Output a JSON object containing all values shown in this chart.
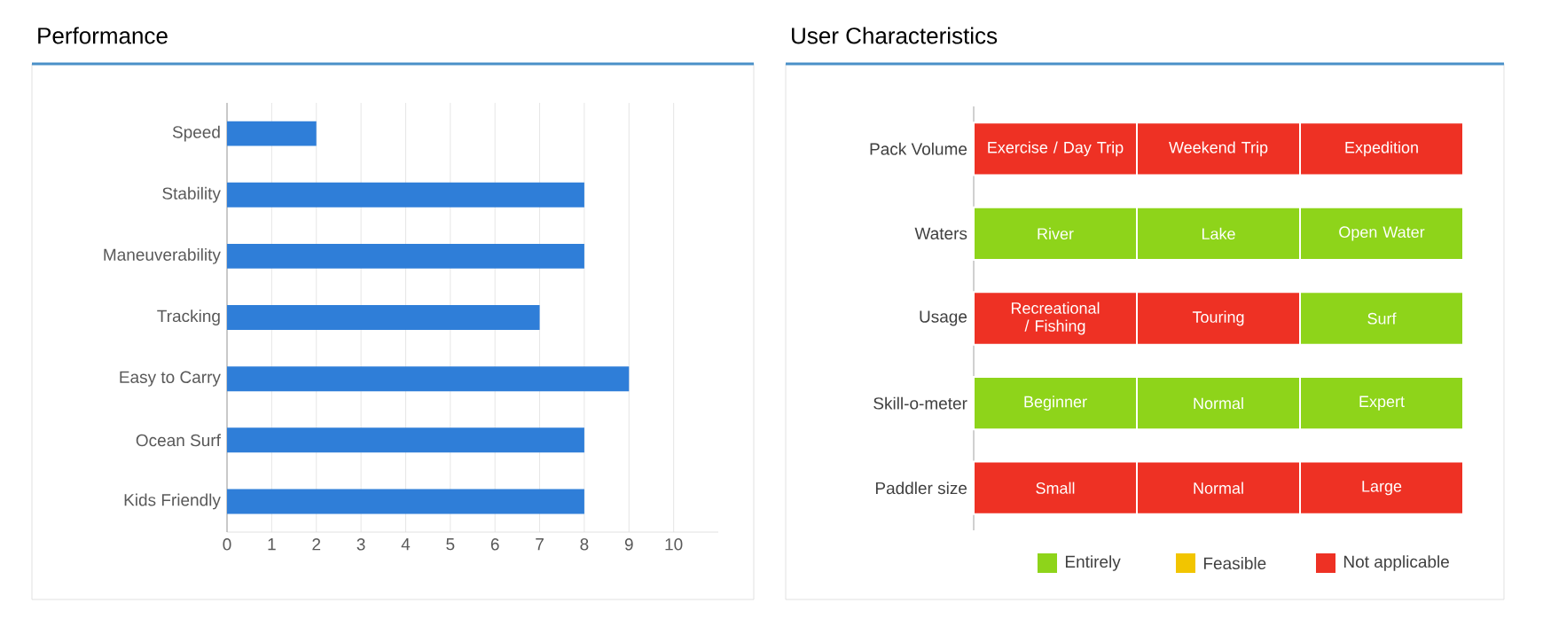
{
  "chart_data": [
    {
      "type": "bar",
      "orientation": "horizontal",
      "title": "Performance",
      "categories": [
        "Speed",
        "Stability",
        "Maneuverability",
        "Tracking",
        "Easy to Carry",
        "Ocean Surf",
        "Kids Friendly"
      ],
      "values": [
        2,
        8,
        8,
        7,
        9,
        8,
        8
      ],
      "color": "#2f7ed8",
      "xlim": [
        0,
        11
      ],
      "xticks": [
        0,
        1,
        2,
        3,
        4,
        5,
        6,
        7,
        8,
        9,
        10
      ],
      "grid": "x"
    },
    {
      "type": "other",
      "title": "User Characteristics",
      "categories": [
        "Pack Volume",
        "Waters",
        "Usage",
        "Skill-o-meter",
        "Paddler size"
      ],
      "cell_labels": [
        [
          "Exercise / Day Trip",
          "Weekend Trip",
          "Expedition"
        ],
        [
          "River",
          "Lake",
          "Open Water"
        ],
        [
          "Recreational / Fishing",
          "Touring",
          "Surf"
        ],
        [
          "Beginner",
          "Normal",
          "Expert"
        ],
        [
          "Small",
          "Normal",
          "Large"
        ]
      ],
      "colors": [
        [
          "#ee3124",
          "#ee3124",
          "#ee3124"
        ],
        [
          "#8ed41a",
          "#8ed41a",
          "#8ed41a"
        ],
        [
          "#ee3124",
          "#ee3124",
          "#8ed41a"
        ],
        [
          "#8ed41a",
          "#8ed41a",
          "#8ed41a"
        ],
        [
          "#ee3124",
          "#ee3124",
          "#ee3124"
        ]
      ],
      "annotations": [
        "Entirely",
        "Feasible",
        "Not applicable"
      ]
    }
  ]
}
